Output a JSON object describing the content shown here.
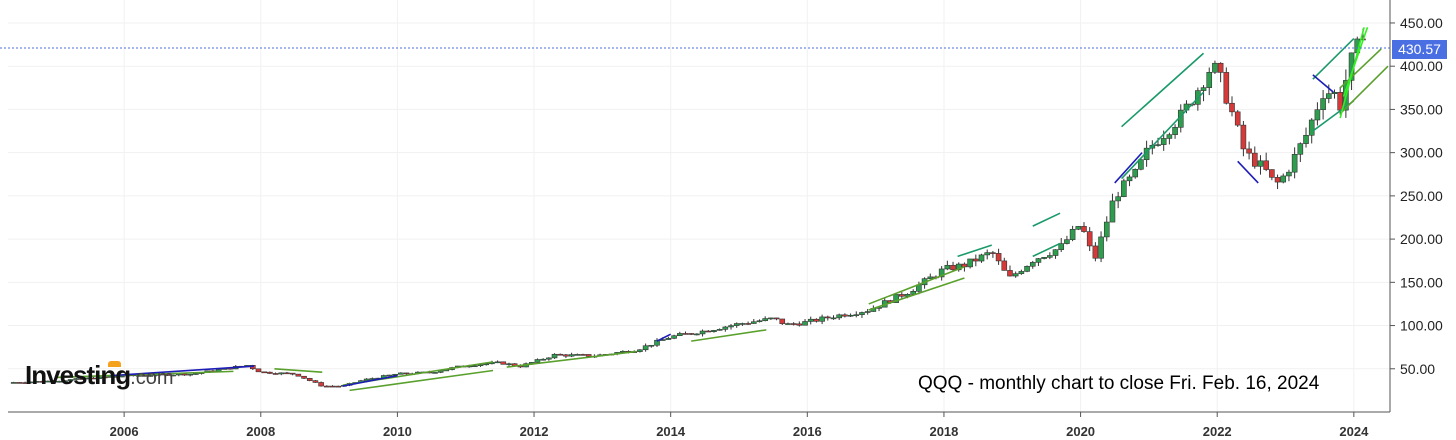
{
  "chart_data": {
    "type": "candlestick",
    "title": "QQQ - monthly chart to close Fri. Feb. 16, 2024",
    "watermark": "Investing",
    "watermark_suffix": ".com",
    "last_price": 430.57,
    "last_price_label": "430.57",
    "ylim": [
      0,
      465
    ],
    "y_ticks": [
      50,
      100,
      150,
      200,
      250,
      300,
      350,
      400,
      450
    ],
    "y_tick_labels": [
      "50.00",
      "100.00",
      "150.00",
      "200.00",
      "250.00",
      "300.00",
      "350.00",
      "400.00",
      "450.00"
    ],
    "xlim": [
      2004.3,
      2024.5
    ],
    "x_ticks": [
      2006,
      2008,
      2010,
      2012,
      2014,
      2016,
      2018,
      2020,
      2022,
      2024
    ],
    "x_tick_labels": [
      "2006",
      "2008",
      "2010",
      "2012",
      "2014",
      "2016",
      "2018",
      "2020",
      "2022",
      "2024"
    ],
    "up_color": "#2e9e4e",
    "down_color": "#d43a3a",
    "price_tag_color": "#4a6fe3",
    "close_path": [
      [
        2004.3,
        34
      ],
      [
        2005.0,
        36
      ],
      [
        2006.0,
        42
      ],
      [
        2007.0,
        44
      ],
      [
        2007.8,
        54
      ],
      [
        2008.0,
        46
      ],
      [
        2008.5,
        44
      ],
      [
        2008.9,
        30
      ],
      [
        2009.2,
        30
      ],
      [
        2009.5,
        37
      ],
      [
        2010.0,
        44
      ],
      [
        2010.5,
        46
      ],
      [
        2011.0,
        54
      ],
      [
        2011.5,
        57
      ],
      [
        2011.8,
        53
      ],
      [
        2012.0,
        58
      ],
      [
        2012.3,
        66
      ],
      [
        2012.9,
        65
      ],
      [
        2013.5,
        72
      ],
      [
        2014.0,
        87
      ],
      [
        2014.5,
        94
      ],
      [
        2015.0,
        102
      ],
      [
        2015.5,
        108
      ],
      [
        2015.7,
        101
      ],
      [
        2016.0,
        104
      ],
      [
        2016.4,
        111
      ],
      [
        2016.9,
        118
      ],
      [
        2017.5,
        140
      ],
      [
        2018.0,
        165
      ],
      [
        2018.3,
        170
      ],
      [
        2018.7,
        185
      ],
      [
        2018.95,
        154
      ],
      [
        2019.3,
        176
      ],
      [
        2019.7,
        190
      ],
      [
        2020.0,
        218
      ],
      [
        2020.2,
        175
      ],
      [
        2020.5,
        250
      ],
      [
        2020.8,
        275
      ],
      [
        2021.0,
        305
      ],
      [
        2021.5,
        345
      ],
      [
        2021.9,
        398
      ],
      [
        2022.0,
        395
      ],
      [
        2022.2,
        350
      ],
      [
        2022.4,
        300
      ],
      [
        2022.7,
        280
      ],
      [
        2022.85,
        262
      ],
      [
        2023.0,
        275
      ],
      [
        2023.3,
        320
      ],
      [
        2023.55,
        370
      ],
      [
        2023.7,
        370
      ],
      [
        2023.8,
        355
      ],
      [
        2023.9,
        390
      ],
      [
        2024.0,
        415
      ],
      [
        2024.12,
        430.57
      ]
    ],
    "trend_lines": [
      {
        "color": "green",
        "points": [
          [
            2005.0,
            40
          ],
          [
            2007.6,
            47
          ]
        ]
      },
      {
        "color": "green",
        "points": [
          [
            2008.2,
            50
          ],
          [
            2008.9,
            46
          ]
        ]
      },
      {
        "color": "green",
        "points": [
          [
            2009.2,
            31
          ],
          [
            2011.4,
            58
          ]
        ]
      },
      {
        "color": "green",
        "points": [
          [
            2009.3,
            25
          ],
          [
            2011.4,
            48
          ]
        ]
      },
      {
        "color": "green",
        "points": [
          [
            2011.6,
            52
          ],
          [
            2013.5,
            70
          ]
        ]
      },
      {
        "color": "green",
        "points": [
          [
            2014.3,
            82
          ],
          [
            2015.4,
            95
          ]
        ]
      },
      {
        "color": "green",
        "points": [
          [
            2016.9,
            118
          ],
          [
            2018.3,
            155
          ]
        ]
      },
      {
        "color": "green",
        "points": [
          [
            2016.9,
            125
          ],
          [
            2018.3,
            168
          ]
        ]
      },
      {
        "color": "teal",
        "points": [
          [
            2018.2,
            180
          ],
          [
            2018.7,
            193
          ]
        ]
      },
      {
        "color": "teal",
        "points": [
          [
            2019.3,
            215
          ],
          [
            2019.7,
            230
          ]
        ]
      },
      {
        "color": "teal",
        "points": [
          [
            2019.3,
            180
          ],
          [
            2019.7,
            195
          ]
        ]
      },
      {
        "color": "teal",
        "points": [
          [
            2020.6,
            330
          ],
          [
            2021.8,
            415
          ]
        ]
      },
      {
        "color": "teal",
        "points": [
          [
            2020.6,
            270
          ],
          [
            2021.8,
            370
          ]
        ]
      },
      {
        "color": "teal",
        "points": [
          [
            2023.4,
            385
          ],
          [
            2024.0,
            432
          ]
        ]
      },
      {
        "color": "teal",
        "points": [
          [
            2023.4,
            325
          ],
          [
            2024.0,
            360
          ]
        ]
      },
      {
        "color": "green",
        "points": [
          [
            2023.8,
            345
          ],
          [
            2024.5,
            400
          ]
        ]
      },
      {
        "color": "green",
        "points": [
          [
            2023.8,
            375
          ],
          [
            2024.4,
            420
          ]
        ]
      },
      {
        "color": "lime",
        "points": [
          [
            2023.8,
            340
          ],
          [
            2024.15,
            445
          ]
        ]
      },
      {
        "color": "lime",
        "points": [
          [
            2023.85,
            365
          ],
          [
            2024.2,
            445
          ]
        ]
      },
      {
        "color": "blue",
        "points": [
          [
            2005.8,
            42
          ],
          [
            2007.9,
            53
          ]
        ]
      },
      {
        "color": "blue",
        "points": [
          [
            2009.2,
            30
          ],
          [
            2010.0,
            42
          ]
        ]
      },
      {
        "color": "blue",
        "points": [
          [
            2013.8,
            82
          ],
          [
            2014.0,
            90
          ]
        ]
      },
      {
        "color": "blue",
        "points": [
          [
            2020.5,
            265
          ],
          [
            2020.9,
            300
          ]
        ]
      },
      {
        "color": "blue",
        "points": [
          [
            2022.3,
            290
          ],
          [
            2022.6,
            265
          ]
        ]
      },
      {
        "color": "blue",
        "points": [
          [
            2023.4,
            390
          ],
          [
            2023.7,
            370
          ]
        ]
      }
    ]
  }
}
